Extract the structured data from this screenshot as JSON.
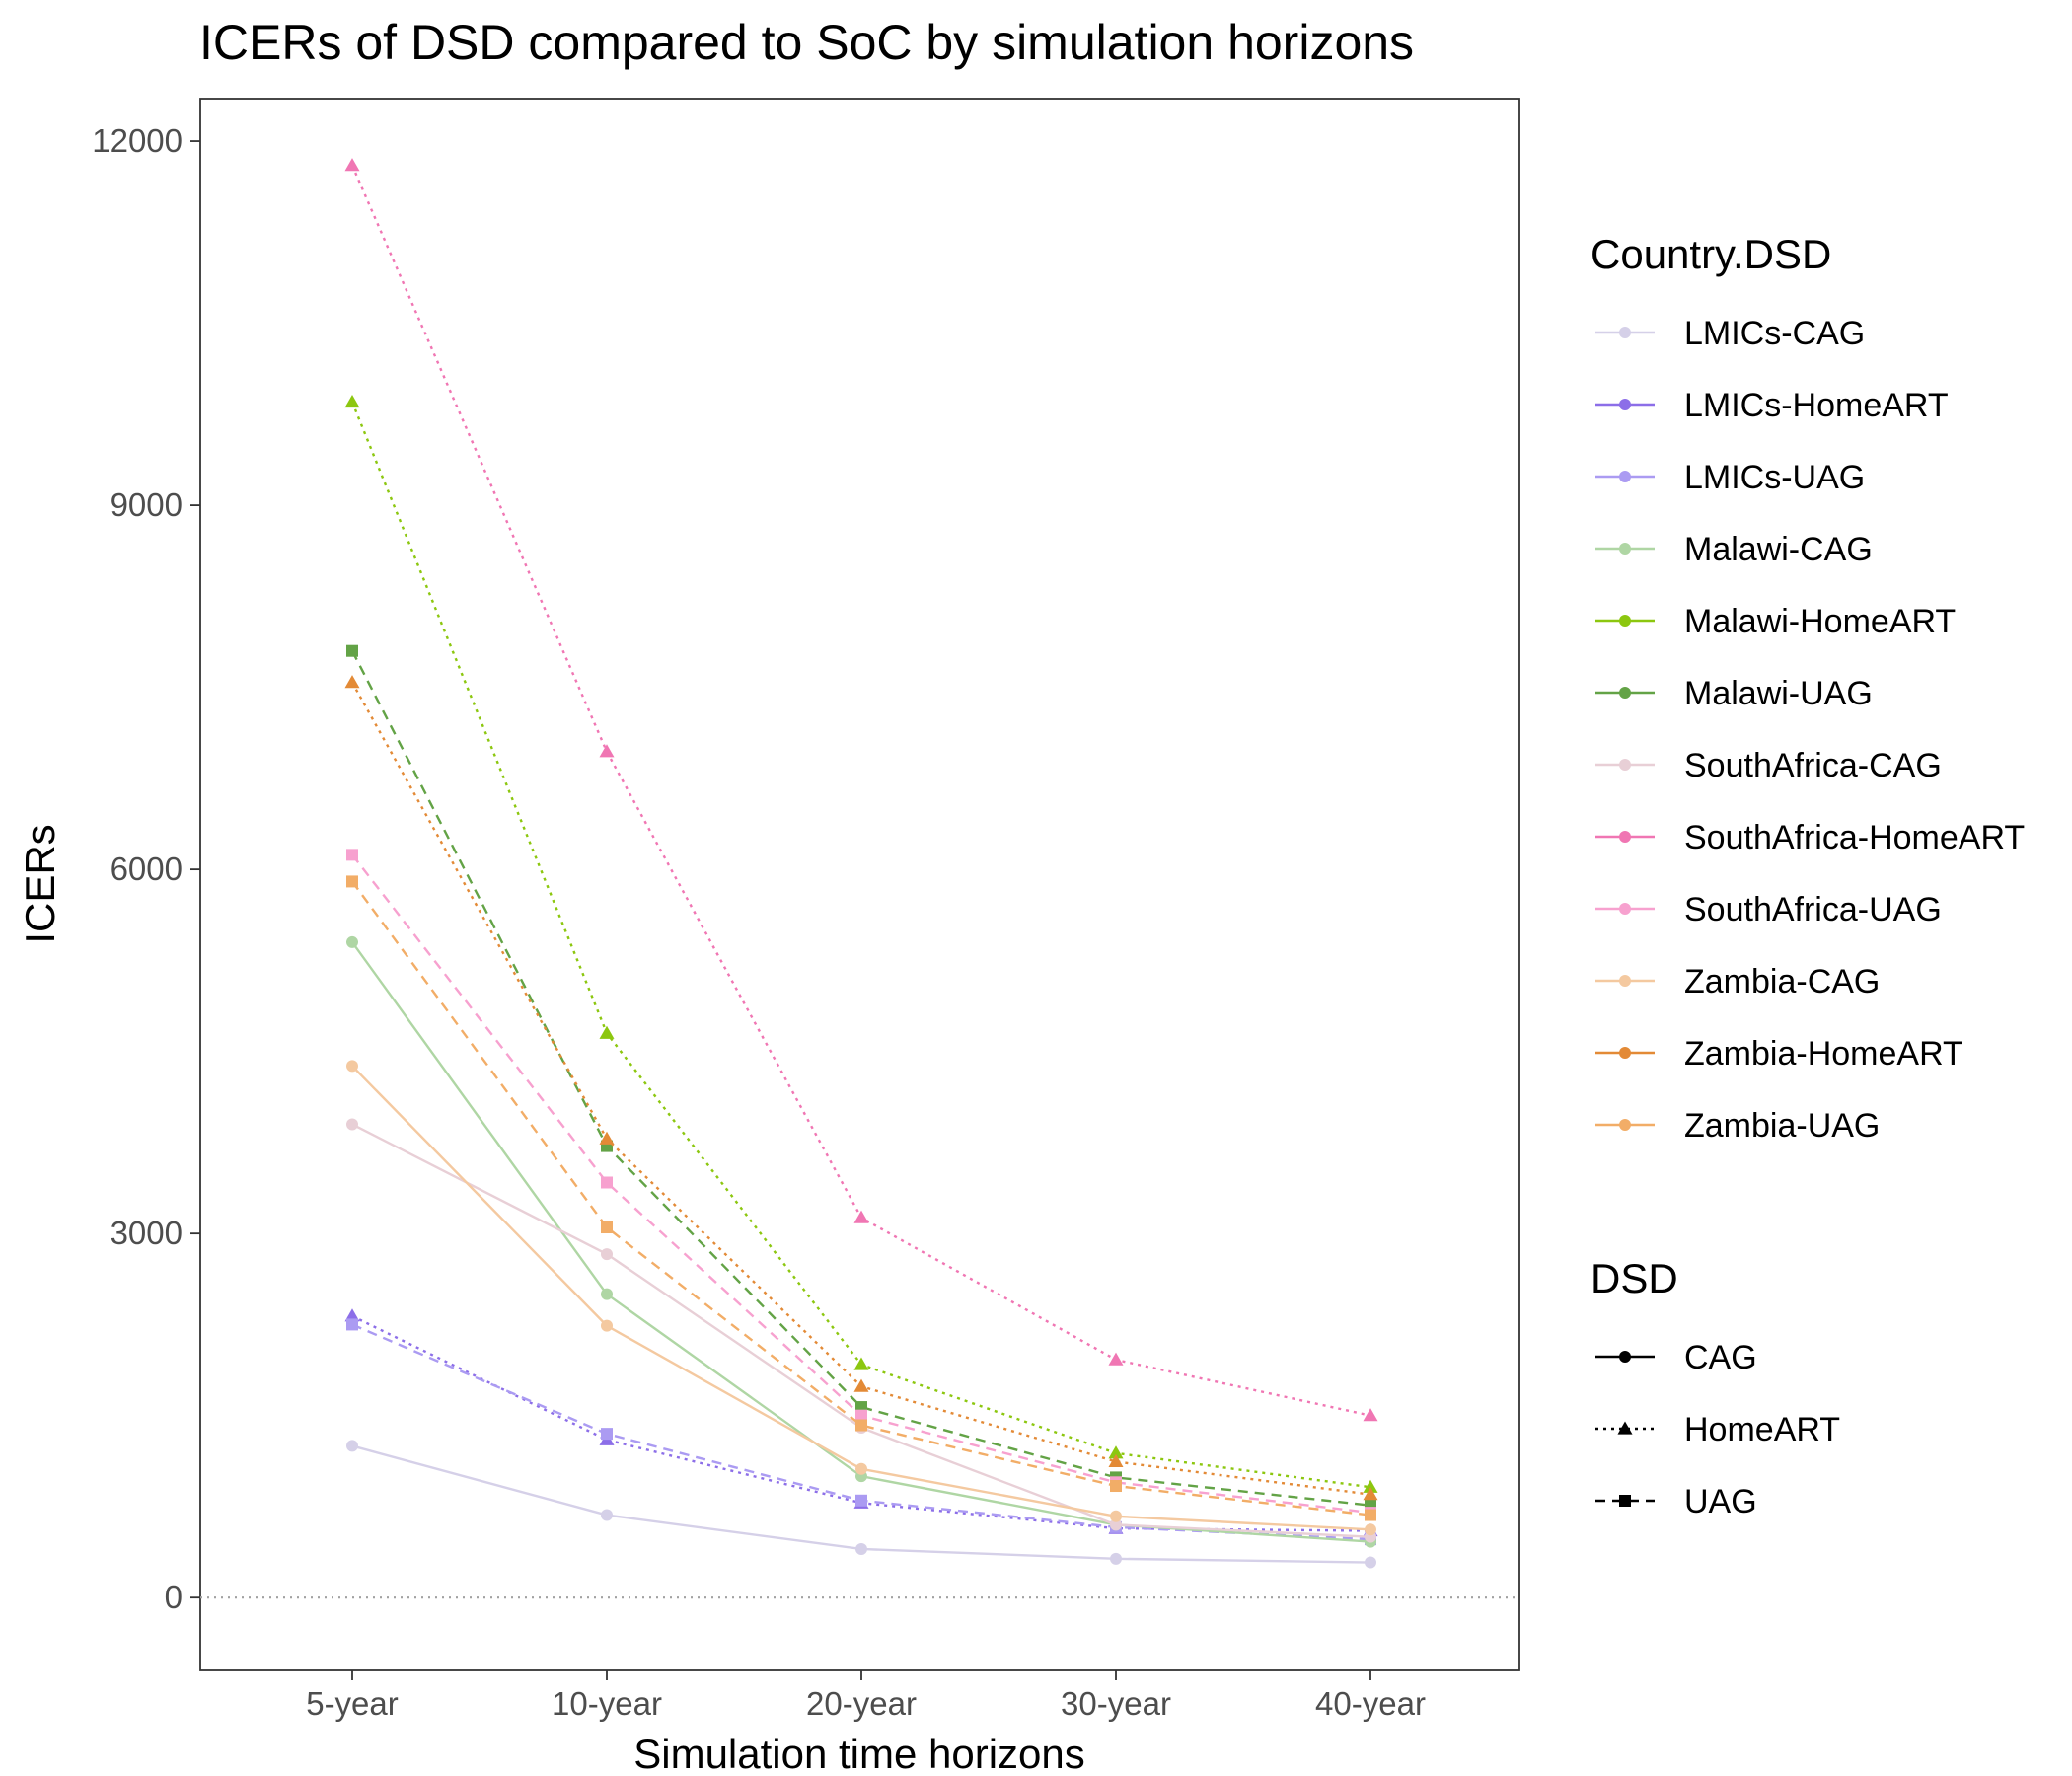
{
  "chart_data": {
    "type": "line",
    "title": "ICERs of DSD compared to SoC by simulation horizons",
    "xlabel": "Simulation time horizons",
    "ylabel": "ICERs",
    "categories": [
      "5-year",
      "10-year",
      "20-year",
      "30-year",
      "40-year"
    ],
    "ylim": [
      -600,
      12350
    ],
    "yticks": [
      0,
      3000,
      6000,
      9000,
      12000
    ],
    "reference_line": {
      "y": 0,
      "style": "dotted",
      "color": "#a0a0a0"
    },
    "grid": false,
    "legend_position": "right",
    "legend_color_title": "Country.DSD",
    "legend_dsd_title": "DSD",
    "dsd_types": [
      {
        "name": "CAG",
        "linetype": "solid",
        "shape": "circle"
      },
      {
        "name": "HomeART",
        "linetype": "dotted",
        "shape": "triangle"
      },
      {
        "name": "UAG",
        "linetype": "dashed",
        "shape": "square"
      }
    ],
    "series": [
      {
        "name": "LMICs-CAG",
        "dsd": "CAG",
        "color": "#d5d0e8",
        "values": [
          1250,
          680,
          400,
          320,
          290
        ]
      },
      {
        "name": "LMICs-HomeART",
        "dsd": "HomeART",
        "color": "#8c6ee8",
        "values": [
          2320,
          1300,
          780,
          570,
          550
        ]
      },
      {
        "name": "LMICs-UAG",
        "dsd": "UAG",
        "color": "#ab9bf2",
        "values": [
          2250,
          1350,
          800,
          580,
          480
        ]
      },
      {
        "name": "Malawi-CAG",
        "dsd": "CAG",
        "color": "#afd6a4",
        "values": [
          5400,
          2500,
          1000,
          600,
          460
        ]
      },
      {
        "name": "Malawi-HomeART",
        "dsd": "HomeART",
        "color": "#8cc70f",
        "values": [
          9850,
          4650,
          1920,
          1190,
          910
        ]
      },
      {
        "name": "Malawi-UAG",
        "dsd": "UAG",
        "color": "#63a346",
        "values": [
          7800,
          3720,
          1570,
          990,
          760
        ]
      },
      {
        "name": "SouthAfrica-CAG",
        "dsd": "CAG",
        "color": "#e8cfd6",
        "values": [
          3900,
          2830,
          1400,
          600,
          500
        ]
      },
      {
        "name": "SouthAfrica-HomeART",
        "dsd": "HomeART",
        "color": "#f076b3",
        "values": [
          11800,
          6970,
          3130,
          1960,
          1500
        ]
      },
      {
        "name": "SouthAfrica-UAG",
        "dsd": "UAG",
        "color": "#f7a1cf",
        "values": [
          6120,
          3420,
          1500,
          950,
          700
        ]
      },
      {
        "name": "Zambia-CAG",
        "dsd": "CAG",
        "color": "#f4c9a0",
        "values": [
          4380,
          2240,
          1060,
          670,
          560
        ]
      },
      {
        "name": "Zambia-HomeART",
        "dsd": "HomeART",
        "color": "#e38a36",
        "values": [
          7540,
          3780,
          1740,
          1120,
          850
        ]
      },
      {
        "name": "Zambia-UAG",
        "dsd": "UAG",
        "color": "#f2ad67",
        "values": [
          5900,
          3050,
          1420,
          920,
          680
        ]
      }
    ]
  }
}
